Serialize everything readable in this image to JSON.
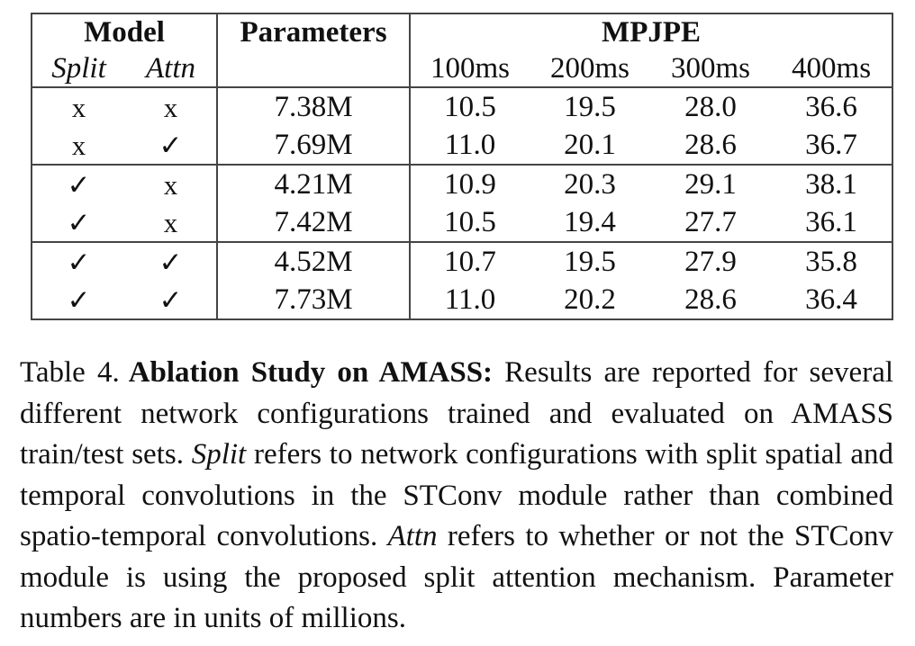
{
  "table": {
    "headers": {
      "model": "Model",
      "parameters": "Parameters",
      "mpjpe": "MPJPE",
      "split": "Split",
      "attn": "Attn",
      "horizons": [
        "100ms",
        "200ms",
        "300ms",
        "400ms"
      ]
    },
    "rows": [
      {
        "split": "x",
        "attn": "x",
        "params": "7.38M",
        "mpjpe": [
          "10.5",
          "19.5",
          "28.0",
          "36.6"
        ]
      },
      {
        "split": "x",
        "attn": "✓",
        "params": "7.69M",
        "mpjpe": [
          "11.0",
          "20.1",
          "28.6",
          "36.7"
        ]
      },
      {
        "split": "✓",
        "attn": "x",
        "params": "4.21M",
        "mpjpe": [
          "10.9",
          "20.3",
          "29.1",
          "38.1"
        ]
      },
      {
        "split": "✓",
        "attn": "x",
        "params": "7.42M",
        "mpjpe": [
          "10.5",
          "19.4",
          "27.7",
          "36.1"
        ]
      },
      {
        "split": "✓",
        "attn": "✓",
        "params": "4.52M",
        "mpjpe": [
          "10.7",
          "19.5",
          "27.9",
          "35.8"
        ]
      },
      {
        "split": "✓",
        "attn": "✓",
        "params": "7.73M",
        "mpjpe": [
          "11.0",
          "20.2",
          "28.6",
          "36.4"
        ]
      }
    ]
  },
  "caption": {
    "label": "Table 4.",
    "title": "Ablation Study on AMASS:",
    "seg1": " Results are reported for several different network configurations trained and evaluated on AMASS train/test sets. ",
    "split_term": "Split",
    "seg2": " refers to network configurations with split spatial and temporal convolutions in the STConv module rather than combined spatio-temporal convolutions. ",
    "attn_term": "Attn",
    "seg3": " refers to whether or not the STConv module is using the proposed split attention mechanism. Parameter numbers are in units of millions."
  }
}
